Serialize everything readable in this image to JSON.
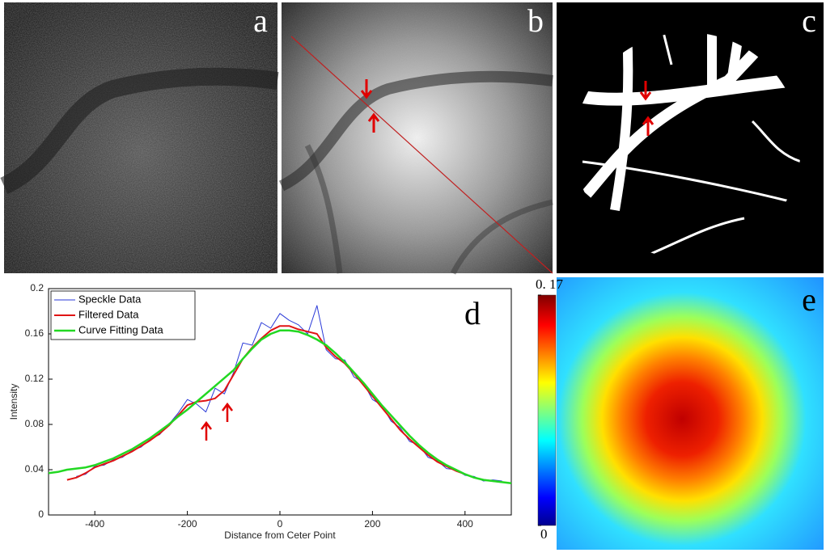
{
  "panel_labels": [
    "a",
    "b",
    "c",
    "d",
    "e"
  ],
  "chart_data": {
    "type": "line",
    "xlabel": "Distance from Ceter Point",
    "ylabel": "Intensity",
    "x": [
      -500,
      -480,
      -460,
      -440,
      -420,
      -400,
      -380,
      -360,
      -340,
      -320,
      -300,
      -280,
      -260,
      -240,
      -220,
      -200,
      -180,
      -160,
      -140,
      -120,
      -100,
      -80,
      -60,
      -40,
      -20,
      0,
      20,
      40,
      60,
      80,
      100,
      120,
      140,
      160,
      180,
      200,
      220,
      240,
      260,
      280,
      300,
      320,
      340,
      360,
      380,
      400,
      420,
      440,
      460,
      480,
      500
    ],
    "series": [
      {
        "name": "Speckle Data",
        "color": "#2a3ad8",
        "width": 1,
        "values": [
          null,
          null,
          null,
          0.034,
          0.036,
          0.043,
          0.044,
          0.049,
          0.051,
          0.057,
          0.06,
          0.067,
          0.071,
          0.08,
          0.09,
          0.102,
          0.098,
          0.091,
          0.112,
          0.107,
          0.126,
          0.152,
          0.15,
          0.17,
          0.165,
          0.178,
          0.172,
          0.168,
          0.16,
          0.185,
          0.146,
          0.138,
          0.137,
          0.122,
          0.117,
          0.102,
          0.097,
          0.083,
          0.077,
          0.065,
          0.062,
          0.051,
          0.048,
          0.041,
          0.04,
          0.035,
          0.034,
          0.03,
          0.031,
          0.03,
          null
        ]
      },
      {
        "name": "Filtered Data",
        "color": "#e01414",
        "width": 2,
        "values": [
          null,
          null,
          0.031,
          0.033,
          0.037,
          0.042,
          0.045,
          0.048,
          0.052,
          0.056,
          0.061,
          0.066,
          0.072,
          0.079,
          0.088,
          0.097,
          0.1,
          0.101,
          0.103,
          0.11,
          0.124,
          0.138,
          0.148,
          0.156,
          0.163,
          0.167,
          0.167,
          0.164,
          0.162,
          0.16,
          0.148,
          0.14,
          0.134,
          0.125,
          0.115,
          0.105,
          0.095,
          0.085,
          0.075,
          0.067,
          0.06,
          0.053,
          0.047,
          0.043,
          0.039,
          0.036,
          0.033,
          0.031,
          0.03,
          0.029,
          null
        ]
      },
      {
        "name": "Curve Fitting Data",
        "color": "#22d822",
        "width": 2.5,
        "values": [
          0.037,
          0.038,
          0.04,
          0.041,
          0.042,
          0.044,
          0.047,
          0.05,
          0.054,
          0.058,
          0.063,
          0.068,
          0.074,
          0.08,
          0.087,
          0.093,
          0.1,
          0.107,
          0.114,
          0.121,
          0.128,
          0.138,
          0.147,
          0.155,
          0.16,
          0.163,
          0.163,
          0.162,
          0.159,
          0.155,
          0.15,
          0.143,
          0.135,
          0.126,
          0.117,
          0.107,
          0.097,
          0.088,
          0.079,
          0.07,
          0.062,
          0.055,
          0.049,
          0.044,
          0.04,
          0.036,
          0.033,
          0.031,
          0.03,
          0.029,
          0.028
        ]
      }
    ],
    "xlim": [
      -500,
      500
    ],
    "xticks": [
      -400,
      -200,
      0,
      200,
      400
    ],
    "ylim": [
      0,
      0.2
    ],
    "yticks": [
      0,
      0.04,
      0.08,
      0.12,
      0.16,
      0.2
    ],
    "legend": "upper-left",
    "grid": false
  },
  "colorbar": {
    "lim": [
      0,
      0.17
    ],
    "ticks": [
      {
        "value": 0.17,
        "label": "0. 17"
      },
      0
    ]
  }
}
